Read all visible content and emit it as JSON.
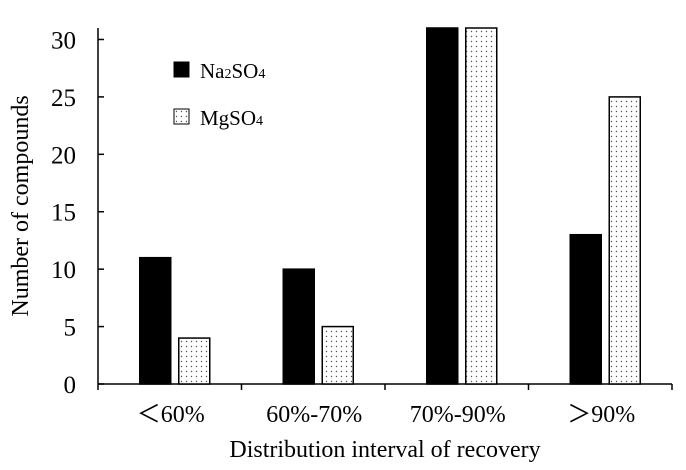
{
  "chart_data": {
    "type": "bar",
    "xlabel": "Distribution interval of recovery",
    "ylabel": "Number of compounds",
    "categories": [
      "＜60%",
      "60%-70%",
      "70%-90%",
      "＞90%"
    ],
    "series": [
      {
        "name": "Na2SO4",
        "legend_main": "Na",
        "legend_sub1": "2",
        "legend_mid": "SO",
        "legend_sub2": "4",
        "fill": "solid-black",
        "color": "#000000",
        "values": [
          11,
          10,
          31,
          13
        ]
      },
      {
        "name": "MgSO4",
        "legend_main": "MgSO",
        "legend_sub1": "",
        "legend_mid": "",
        "legend_sub2": "4",
        "fill": "dotted",
        "color": "#ffffff",
        "values": [
          4,
          5,
          31,
          25
        ]
      }
    ],
    "ylim": [
      0,
      31
    ],
    "yticks": [
      0,
      5,
      10,
      15,
      20,
      25,
      30
    ],
    "grid": false,
    "legend_position": "top-left"
  }
}
